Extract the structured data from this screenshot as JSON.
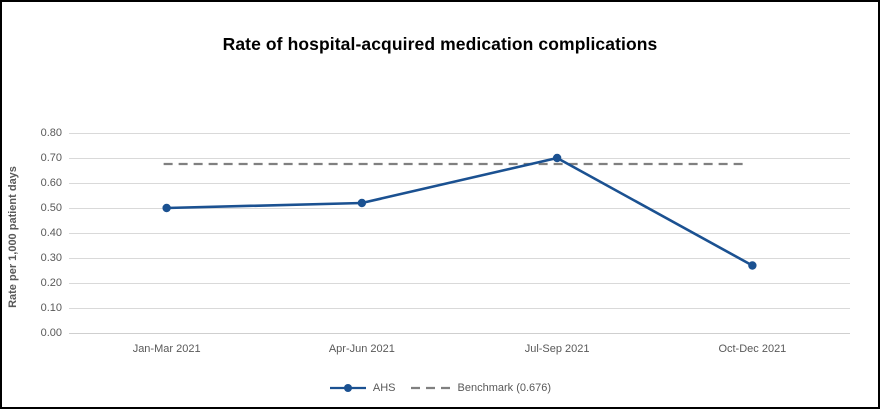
{
  "chart_data": {
    "type": "line",
    "title": "Rate of hospital-acquired medication complications",
    "ylabel": "Rate per 1,000 patient days",
    "xlabel": "",
    "categories": [
      "Jan-Mar 2021",
      "Apr-Jun 2021",
      "Jul-Sep 2021",
      "Oct-Dec 2021"
    ],
    "series": [
      {
        "name": "AHS",
        "values": [
          0.5,
          0.52,
          0.7,
          0.27
        ],
        "color": "#1B5191",
        "style": "solid",
        "marker": "circle"
      },
      {
        "name": "Benchmark (0.676)",
        "value": 0.676,
        "color": "#808080",
        "style": "dashed",
        "marker": "none"
      }
    ],
    "ylim": [
      0,
      0.8
    ],
    "ytick_step": 0.1,
    "ytick_labels": [
      "0.00",
      "0.10",
      "0.20",
      "0.30",
      "0.40",
      "0.50",
      "0.60",
      "0.70",
      "0.80"
    ],
    "grid": true,
    "gridline_color": "#D9D9D9",
    "tick_text_color": "#595959",
    "title_color": "#000000",
    "legend_position": "bottom"
  }
}
